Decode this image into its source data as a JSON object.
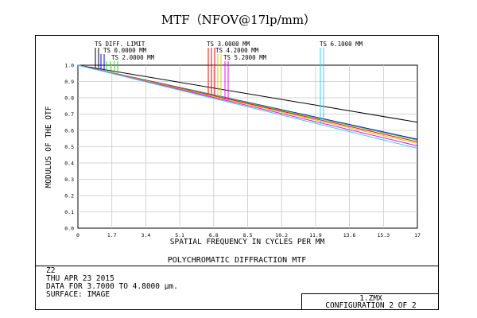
{
  "header": {
    "title": "MTF（NFOV@17lp/mm）"
  },
  "footer": {
    "panel_title": "POLYCHROMATIC DIFFRACTION MTF",
    "lines": [
      "Z2",
      "THU APR 23 2015",
      "DATA FOR 3.7000 TO 4.8000 µm.",
      "SURFACE: IMAGE"
    ],
    "file": "1.ZMX",
    "configuration": "CONFIGURATION 2 OF 2"
  },
  "chart_data": {
    "type": "line",
    "title": "MTF（NFOV@17lp/mm）",
    "xlabel": "SPATIAL FREQUENCY IN CYCLES PER MM",
    "ylabel": "MODULUS OF THE OTF",
    "xlim": [
      0,
      17
    ],
    "ylim": [
      0,
      1
    ],
    "xticks": [
      0,
      1.7,
      3.4,
      5.1,
      6.8,
      8.5,
      10.2,
      11.9,
      13.6,
      15.3,
      17
    ],
    "xtick_labels": [
      "0",
      "1.7",
      "3.4",
      "5.1",
      "6.8",
      "8.5",
      "10.2",
      "11.9",
      "13.6",
      "15.3",
      "17"
    ],
    "yticks": [
      0,
      0.1,
      0.2,
      0.3,
      0.4,
      0.5,
      0.6,
      0.7,
      0.8,
      0.9,
      1
    ],
    "ytick_labels": [
      "0.0",
      "0.1",
      "0.2",
      "0.3",
      "0.4",
      "0.5",
      "0.6",
      "0.7",
      "0.8",
      "0.9",
      "1.0"
    ],
    "grid": true,
    "legend_position": "top",
    "series": [
      {
        "name": "TS DIFF. LIMIT",
        "color": "#000000",
        "x": [
          0,
          17
        ],
        "y": [
          1.0,
          0.65
        ]
      },
      {
        "name": "TS 0.0000 MM",
        "color": "#0000ff",
        "x": [
          0,
          17
        ],
        "y": [
          1.0,
          0.545
        ]
      },
      {
        "name": "TS 2.0000 MM",
        "color": "#33cc33",
        "x": [
          0,
          17
        ],
        "y": [
          1.0,
          0.54
        ]
      },
      {
        "name": "TS 3.0000 MM",
        "color": "#ff0000",
        "x": [
          0,
          17
        ],
        "y": [
          1.0,
          0.53
        ]
      },
      {
        "name": "TS 4.2000 MM",
        "color": "#cccc00",
        "x": [
          0,
          17
        ],
        "y": [
          1.0,
          0.52
        ]
      },
      {
        "name": "TS 5.2000 MM",
        "color": "#ff00ff",
        "x": [
          0,
          17
        ],
        "y": [
          1.0,
          0.505
        ]
      },
      {
        "name": "TS 6.1000 MM",
        "color": "#33ccff",
        "x": [
          0,
          17
        ],
        "y": [
          1.0,
          0.49
        ]
      }
    ]
  }
}
